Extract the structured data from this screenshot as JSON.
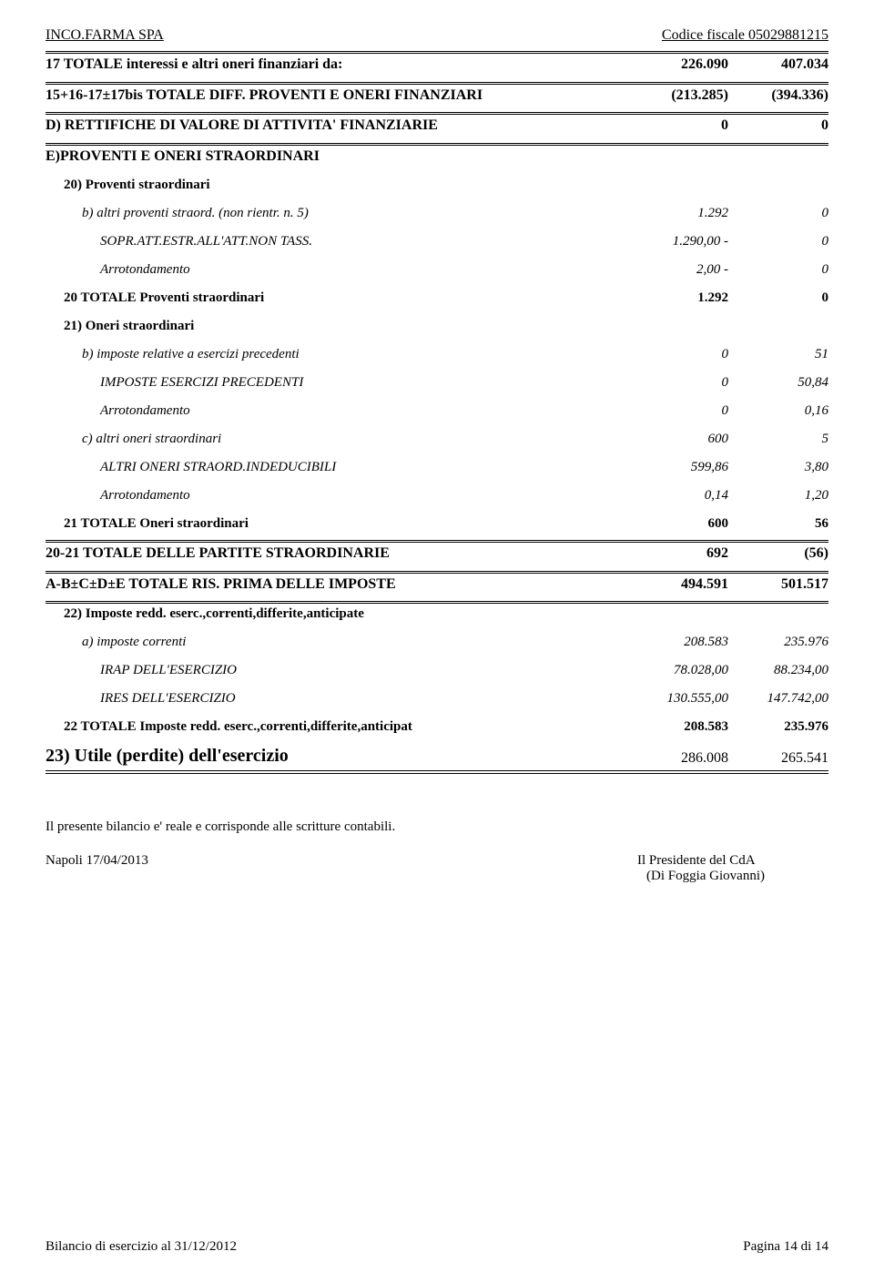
{
  "header": {
    "company": "INCO.FARMA SPA",
    "fiscal": "Codice fiscale 05029881215"
  },
  "rows": [
    {
      "cls": "bold sec",
      "label": "17 TOTALE interessi e altri oneri finanziari da:",
      "c1": "226.090",
      "c2": "407.034",
      "ind": 0,
      "top": "double"
    },
    {
      "cls": "bold sec",
      "label": "15+16-17±17bis TOTALE DIFF. PROVENTI E ONERI FINANZIARI",
      "c1": "(213.285)",
      "c2": "(394.336)",
      "ind": 0,
      "top": "double",
      "spacer": true
    },
    {
      "cls": "bold sec",
      "label": "D) RETTIFICHE DI VALORE DI ATTIVITA' FINANZIARIE",
      "c1": "0",
      "c2": "0",
      "ind": 0,
      "top": "double",
      "spacer": true
    },
    {
      "cls": "bold sec",
      "label": "E)PROVENTI E ONERI STRAORDINARI",
      "c1": "",
      "c2": "",
      "ind": 0,
      "top": "double",
      "spacer": true
    },
    {
      "cls": "bold row",
      "label": "20) Proventi straordinari",
      "c1": "",
      "c2": "",
      "ind": 1,
      "spacer": true
    },
    {
      "cls": "italic row",
      "label": "b) altri proventi straord. (non rientr. n. 5)",
      "c1": "1.292",
      "c2": "0",
      "ind": 2,
      "spacer": true
    },
    {
      "cls": "italic row",
      "label": "SOPR.ATT.ESTR.ALL'ATT.NON TASS.",
      "c1": "1.290,00   -",
      "c2": "0",
      "ind": 3,
      "spacer": true
    },
    {
      "cls": "italic row",
      "label": "Arrotondamento",
      "c1": "2,00   -",
      "c2": "0",
      "ind": 3,
      "spacer": true
    },
    {
      "cls": "bold row",
      "label": "20 TOTALE Proventi straordinari",
      "c1": "1.292",
      "c2": "0",
      "ind": 1,
      "spacer": true
    },
    {
      "cls": "bold row",
      "label": "21) Oneri straordinari",
      "c1": "",
      "c2": "",
      "ind": 1,
      "spacer": true
    },
    {
      "cls": "italic row",
      "label": "b) imposte relative a esercizi precedenti",
      "c1": "0",
      "c2": "51",
      "ind": 2,
      "spacer": true
    },
    {
      "cls": "italic row",
      "label": "IMPOSTE ESERCIZI PRECEDENTI",
      "c1": "0",
      "c2": "50,84",
      "ind": 3,
      "spacer": true
    },
    {
      "cls": "italic row",
      "label": "Arrotondamento",
      "c1": "0",
      "c2": "0,16",
      "ind": 3,
      "spacer": true
    },
    {
      "cls": "italic row",
      "label": "c) altri oneri straordinari",
      "c1": "600",
      "c2": "5",
      "ind": 2,
      "spacer": true
    },
    {
      "cls": "italic row",
      "label": "ALTRI ONERI STRAORD.INDEDUCIBILI",
      "c1": "599,86",
      "c2": "3,80",
      "ind": 3,
      "spacer": true
    },
    {
      "cls": "italic row",
      "label": "Arrotondamento",
      "c1": "0,14",
      "c2": "1,20",
      "ind": 3,
      "spacer": true
    },
    {
      "cls": "bold row",
      "label": "21 TOTALE Oneri straordinari",
      "c1": "600",
      "c2": "56",
      "ind": 1,
      "spacer": true
    },
    {
      "cls": "bold sec",
      "label": "20-21 TOTALE DELLE PARTITE STRAORDINARIE",
      "c1": "692",
      "c2": "(56)",
      "ind": 0,
      "top": "double",
      "spacer": true
    },
    {
      "cls": "bold sec",
      "label": "A-B±C±D±E TOTALE RIS. PRIMA DELLE IMPOSTE",
      "c1": "494.591",
      "c2": "501.517",
      "ind": 0,
      "top": "double",
      "spacer": true
    },
    {
      "cls": "bold row",
      "label": "22) Imposte redd. eserc.,correnti,differite,anticipate",
      "c1": "",
      "c2": "",
      "ind": 1,
      "top": "double",
      "spacer": true
    },
    {
      "cls": "italic row",
      "label": "a) imposte correnti",
      "c1": "208.583",
      "c2": "235.976",
      "ind": 2,
      "spacer": true
    },
    {
      "cls": "italic row",
      "label": "IRAP DELL'ESERCIZIO",
      "c1": "78.028,00",
      "c2": "88.234,00",
      "ind": 3,
      "spacer": true
    },
    {
      "cls": "italic row",
      "label": "IRES DELL'ESERCIZIO",
      "c1": "130.555,00",
      "c2": "147.742,00",
      "ind": 3,
      "spacer": true
    },
    {
      "cls": "bold row",
      "label": "22 TOTALE Imposte redd. eserc.,correnti,differite,anticipat",
      "c1": "208.583",
      "c2": "235.976",
      "ind": 1,
      "spacer": true
    }
  ],
  "final": {
    "label": "23) Utile (perdite) dell'esercizio",
    "c1": "286.008",
    "c2": "265.541"
  },
  "note": "Il presente bilancio e' reale e corrisponde alle scritture contabili.",
  "sign": {
    "left": "Napoli 17/04/2013",
    "r1": "Il Presidente del CdA",
    "r2": "(Di Foggia Giovanni)"
  },
  "footer": {
    "left": "Bilancio di esercizio al 31/12/2012",
    "right": "Pagina 14 di 14"
  }
}
